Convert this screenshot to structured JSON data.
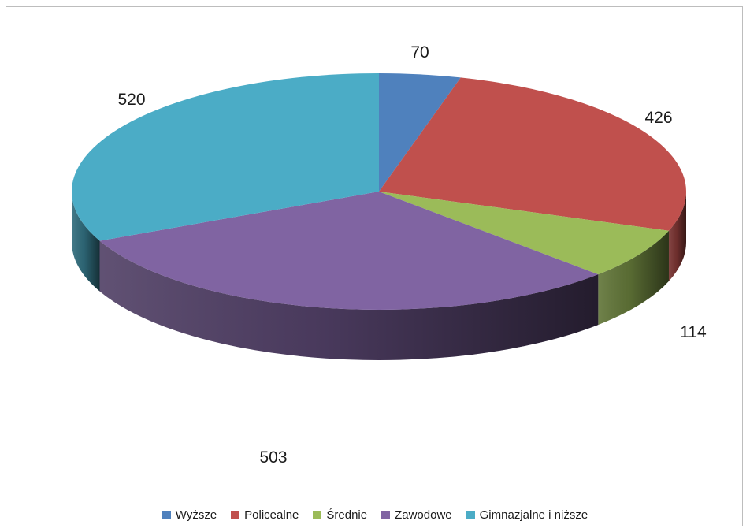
{
  "chart_data": {
    "type": "pie",
    "title": "",
    "categories": [
      "Wyższe",
      "Policealne",
      "Średnie",
      "Zawodowe",
      "Gimnazjalne i niższe"
    ],
    "values": [
      70,
      426,
      114,
      503,
      520
    ],
    "data_labels": [
      "70",
      "426",
      "114",
      "503",
      "520"
    ],
    "colors": [
      "#4F81BD",
      "#C0504D",
      "#9BBB59",
      "#8064A2",
      "#4BACC6"
    ],
    "legend_position": "bottom",
    "three_d": true
  }
}
